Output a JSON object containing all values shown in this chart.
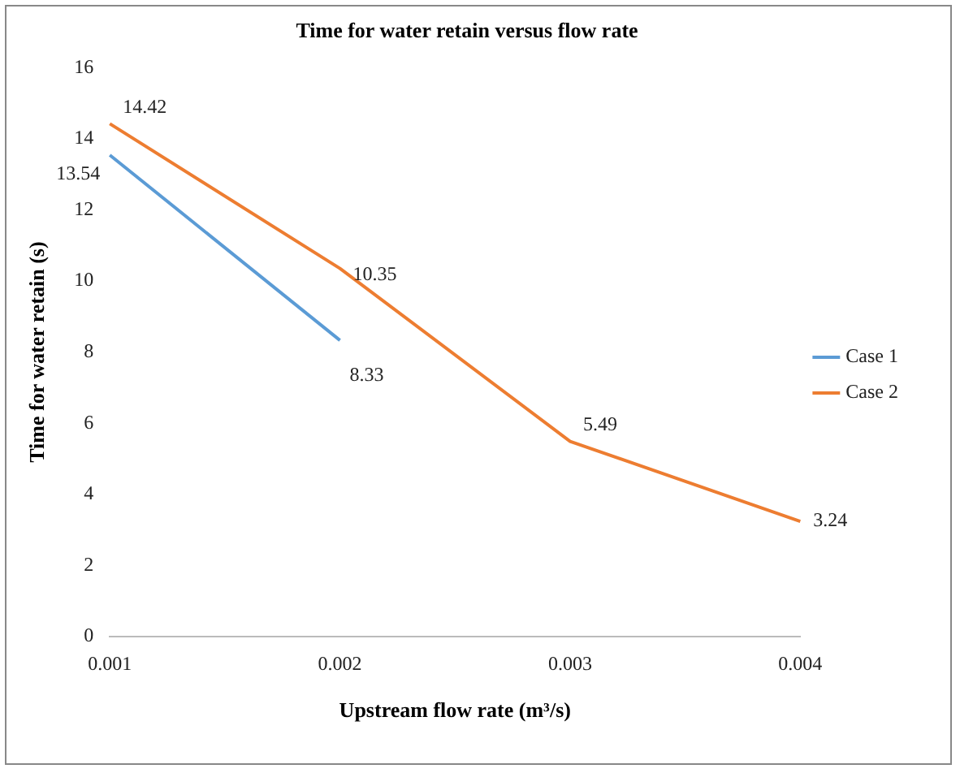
{
  "chart_data": {
    "type": "line",
    "title": "Time for water retain versus flow rate",
    "xlabel": "Upstream flow rate (m³/s)",
    "ylabel": "Time for water retain (s)",
    "categories": [
      "0.001",
      "0.002",
      "0.003",
      "0.004"
    ],
    "series": [
      {
        "name": "Case 1",
        "color": "#5b9bd5",
        "values": [
          13.54,
          8.33,
          null,
          null
        ]
      },
      {
        "name": "Case 2",
        "color": "#ed7d31",
        "values": [
          14.42,
          10.35,
          5.49,
          3.24
        ]
      }
    ],
    "ylim": [
      0,
      16
    ],
    "yticks": [
      0,
      2,
      4,
      6,
      8,
      10,
      12,
      14,
      16
    ],
    "grid": false,
    "legend": "right",
    "marker": "none",
    "line_style": "solid",
    "data_labels": true
  }
}
